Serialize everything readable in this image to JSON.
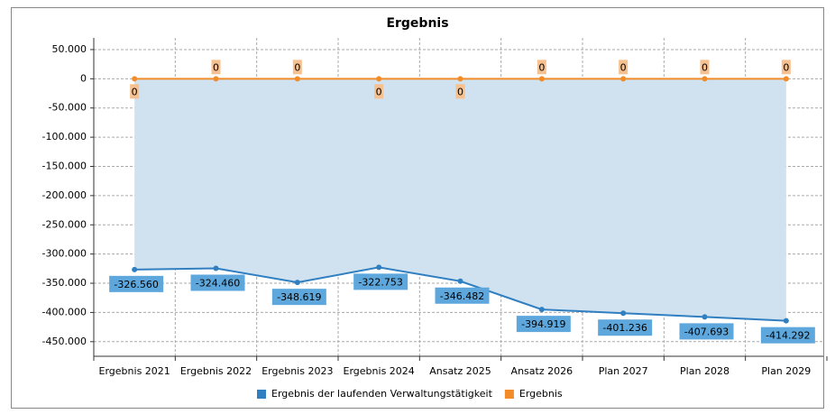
{
  "chart_data": {
    "type": "line",
    "title": "Ergebnis",
    "categories": [
      "Ergebnis 2021",
      "Ergebnis 2022",
      "Ergebnis 2023",
      "Ergebnis 2024",
      "Ansatz 2025",
      "Ansatz 2026",
      "Plan 2027",
      "Plan 2028",
      "Plan 2029"
    ],
    "series": [
      {
        "name": "Ergebnis der laufenden Verwaltungstätigkeit",
        "color": "#2f7fc1",
        "area_color": "#d0e1ef",
        "label_color": "#5ea7dd",
        "values": [
          -326560,
          -324460,
          -348619,
          -322753,
          -346482,
          -394919,
          -401236,
          -407693,
          -414292
        ],
        "value_labels": [
          "-326.560",
          "-324.460",
          "-348.619",
          "-322.753",
          "-346.482",
          "-394.919",
          "-401.236",
          "-407.693",
          "-414.292"
        ]
      },
      {
        "name": "Ergebnis",
        "color": "#f28c28",
        "label_color": "#f7c08f",
        "values": [
          0,
          0,
          0,
          0,
          0,
          0,
          0,
          0,
          0
        ]
      }
    ],
    "ylim": [
      -475000,
      70000
    ],
    "yticks": [
      {
        "value": 50000,
        "label": "50.000"
      },
      0,
      {
        "value": -50000,
        "label": "-50.000"
      },
      {
        "value": -100000,
        "label": "-100.000"
      },
      {
        "value": -150000,
        "label": "-150.000"
      },
      {
        "value": -200000,
        "label": "-200.000"
      },
      {
        "value": -250000,
        "label": "-250.000"
      },
      {
        "value": -300000,
        "label": "-300.000"
      },
      {
        "value": -350000,
        "label": "-350.000"
      },
      {
        "value": -400000,
        "label": "-400.000"
      },
      {
        "value": -450000,
        "label": "-450.000"
      }
    ],
    "grid": true,
    "legend": "bottom"
  }
}
